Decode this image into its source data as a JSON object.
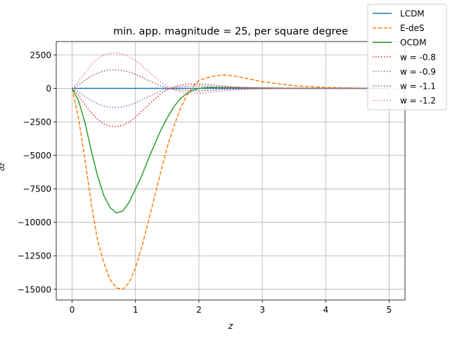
{
  "chart_data": {
    "type": "line",
    "title": "min. app. magnitude = 25, per square degree",
    "xlabel": "z",
    "ylabel": "dz",
    "xlim": [
      -0.25,
      5.25
    ],
    "ylim": [
      -15800,
      3500
    ],
    "xticks": [
      0,
      1,
      2,
      3,
      4,
      5
    ],
    "xtick_labels": [
      "0",
      "1",
      "2",
      "3",
      "4",
      "5"
    ],
    "yticks": [
      2500,
      0,
      -2500,
      -5000,
      -7500,
      -10000,
      -12500,
      -15000
    ],
    "ytick_labels": [
      "2500",
      "0",
      "−2500",
      "−5000",
      "−7500",
      "−10000",
      "−12500",
      "−15000"
    ],
    "grid": true,
    "legend_position": "top-right",
    "series": [
      {
        "name": "LCDM",
        "color": "#1f77b4",
        "style": "solid",
        "x": [
          0,
          5
        ],
        "y": [
          0,
          0
        ]
      },
      {
        "name": "E-deS",
        "color": "#ff7f0e",
        "style": "dashed",
        "x": [
          0,
          0.1,
          0.2,
          0.3,
          0.4,
          0.5,
          0.6,
          0.7,
          0.8,
          0.9,
          1.0,
          1.1,
          1.2,
          1.3,
          1.4,
          1.5,
          1.6,
          1.7,
          1.8,
          1.9,
          2.0,
          2.2,
          2.4,
          2.6,
          2.8,
          3.0,
          3.5,
          4.0,
          4.5,
          5.0
        ],
        "y": [
          0,
          -2200,
          -5200,
          -8500,
          -11300,
          -13000,
          -14300,
          -14900,
          -15000,
          -14500,
          -13400,
          -11800,
          -10000,
          -8100,
          -6200,
          -4400,
          -2900,
          -1600,
          -600,
          100,
          600,
          900,
          1000,
          900,
          700,
          500,
          200,
          70,
          20,
          0
        ]
      },
      {
        "name": "OCDM",
        "color": "#2ca02c",
        "style": "solid",
        "x": [
          0,
          0.1,
          0.2,
          0.3,
          0.4,
          0.5,
          0.6,
          0.7,
          0.8,
          0.9,
          1.0,
          1.1,
          1.2,
          1.3,
          1.4,
          1.5,
          1.6,
          1.7,
          1.8,
          1.9,
          2.0,
          2.1,
          2.2,
          2.5,
          3.0,
          3.5,
          4.0,
          4.5,
          5.0
        ],
        "y": [
          0,
          -900,
          -2500,
          -4600,
          -6500,
          -8000,
          -8900,
          -9300,
          -9150,
          -8500,
          -7500,
          -6500,
          -5300,
          -4200,
          -3100,
          -2200,
          -1400,
          -800,
          -400,
          -150,
          0,
          50,
          80,
          60,
          30,
          10,
          5,
          0,
          0
        ]
      },
      {
        "name": "w = -0.8",
        "color": "#d62728",
        "style": "dotted",
        "x": [
          0,
          0.1,
          0.2,
          0.3,
          0.4,
          0.5,
          0.6,
          0.7,
          0.8,
          0.9,
          1.0,
          1.1,
          1.2,
          1.3,
          1.4,
          1.5,
          1.6,
          1.7,
          1.8,
          1.9,
          2.0,
          2.2,
          2.4,
          2.6,
          3.0,
          3.5,
          4.0,
          5.0
        ],
        "y": [
          0,
          -500,
          -1200,
          -1800,
          -2300,
          -2650,
          -2820,
          -2850,
          -2750,
          -2500,
          -2150,
          -1700,
          -1250,
          -800,
          -400,
          -100,
          100,
          230,
          300,
          330,
          320,
          250,
          160,
          90,
          30,
          10,
          0,
          0
        ]
      },
      {
        "name": "w = -0.9",
        "color": "#9467bd",
        "style": "dotted",
        "x": [
          0,
          0.1,
          0.2,
          0.3,
          0.4,
          0.5,
          0.6,
          0.7,
          0.8,
          0.9,
          1.0,
          1.1,
          1.2,
          1.3,
          1.4,
          1.5,
          1.6,
          1.7,
          1.8,
          2.0,
          2.2,
          2.4,
          3.0,
          4.0,
          5.0
        ],
        "y": [
          0,
          -250,
          -600,
          -900,
          -1150,
          -1320,
          -1400,
          -1420,
          -1380,
          -1250,
          -1080,
          -850,
          -620,
          -400,
          -200,
          -50,
          50,
          110,
          150,
          160,
          120,
          80,
          20,
          0,
          0
        ]
      },
      {
        "name": "w = -1.1",
        "color": "#8c564b",
        "style": "dotted",
        "x": [
          0,
          0.1,
          0.2,
          0.3,
          0.4,
          0.5,
          0.6,
          0.7,
          0.8,
          0.9,
          1.0,
          1.1,
          1.2,
          1.3,
          1.4,
          1.5,
          1.6,
          1.7,
          1.8,
          2.0,
          2.2,
          2.4,
          3.0,
          4.0,
          5.0
        ],
        "y": [
          0,
          250,
          600,
          900,
          1150,
          1300,
          1380,
          1380,
          1330,
          1220,
          1050,
          830,
          600,
          390,
          190,
          40,
          -60,
          -120,
          -160,
          -170,
          -130,
          -80,
          -20,
          0,
          0
        ]
      },
      {
        "name": "w = -1.2",
        "color": "#e377c2",
        "style": "dotted",
        "x": [
          0,
          0.1,
          0.2,
          0.3,
          0.4,
          0.5,
          0.6,
          0.7,
          0.8,
          0.9,
          1.0,
          1.1,
          1.2,
          1.3,
          1.4,
          1.5,
          1.6,
          1.7,
          1.8,
          1.9,
          2.0,
          2.2,
          2.4,
          2.6,
          3.0,
          3.5,
          4.0,
          5.0
        ],
        "y": [
          0,
          500,
          1150,
          1750,
          2200,
          2500,
          2630,
          2650,
          2570,
          2380,
          2080,
          1700,
          1280,
          860,
          470,
          150,
          -100,
          -260,
          -340,
          -370,
          -350,
          -280,
          -180,
          -100,
          -30,
          -10,
          0,
          0
        ]
      }
    ]
  }
}
